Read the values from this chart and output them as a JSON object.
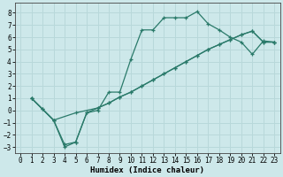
{
  "xlabel": "Humidex (Indice chaleur)",
  "xlim": [
    -0.5,
    23.5
  ],
  "ylim": [
    -3.5,
    8.8
  ],
  "xticks": [
    0,
    1,
    2,
    3,
    4,
    5,
    6,
    7,
    8,
    9,
    10,
    11,
    12,
    13,
    14,
    15,
    16,
    17,
    18,
    19,
    20,
    21,
    22,
    23
  ],
  "yticks": [
    -3,
    -2,
    -1,
    0,
    1,
    2,
    3,
    4,
    5,
    6,
    7,
    8
  ],
  "background_color": "#cde8ea",
  "grid_color": "#b8d8da",
  "line_color": "#2a7a6a",
  "line1_x": [
    1,
    2,
    3,
    4,
    5,
    6,
    7,
    8,
    9,
    10,
    11,
    12,
    13,
    14,
    15,
    16,
    17,
    18,
    19,
    20,
    21,
    22,
    23
  ],
  "line1_y": [
    1.0,
    0.1,
    -0.8,
    -2.8,
    -2.6,
    -0.2,
    0.0,
    1.5,
    1.5,
    4.2,
    6.6,
    6.6,
    7.6,
    7.6,
    7.6,
    8.1,
    7.1,
    6.6,
    6.0,
    5.6,
    4.6,
    5.7,
    5.6
  ],
  "line2_x": [
    1,
    2,
    3,
    5,
    7,
    8,
    9,
    10,
    11,
    12,
    13,
    14,
    15,
    16,
    17,
    18,
    19,
    20,
    21,
    22,
    23
  ],
  "line2_y": [
    1.0,
    0.1,
    -0.8,
    -0.2,
    0.2,
    0.6,
    1.1,
    1.5,
    2.0,
    2.5,
    3.0,
    3.5,
    4.0,
    4.5,
    5.0,
    5.4,
    5.8,
    6.2,
    6.5,
    5.6,
    5.6
  ],
  "line3_x": [
    1,
    3,
    4,
    5,
    6,
    7,
    8,
    9,
    10,
    11,
    12,
    13,
    14,
    15,
    16,
    17,
    18,
    19,
    20,
    21,
    22,
    23
  ],
  "line3_y": [
    1.0,
    -0.8,
    -3.0,
    -2.6,
    -0.2,
    0.2,
    0.6,
    1.1,
    1.5,
    2.0,
    2.5,
    3.0,
    3.5,
    4.0,
    4.5,
    5.0,
    5.4,
    5.8,
    6.2,
    6.5,
    5.6,
    5.6
  ]
}
